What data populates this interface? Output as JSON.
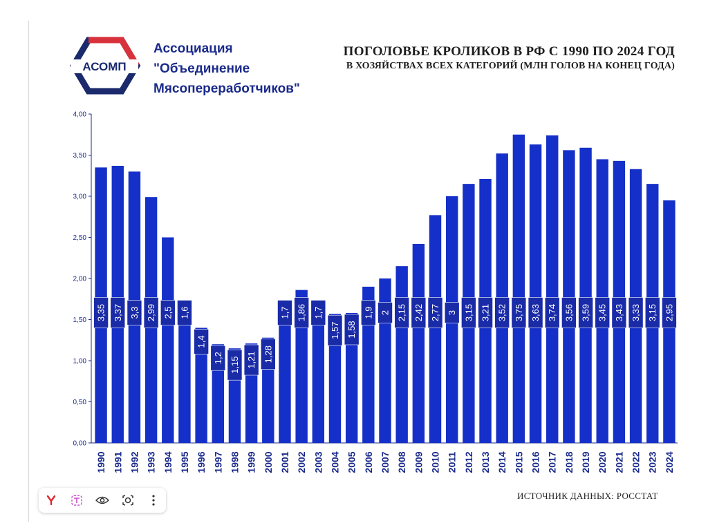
{
  "org": {
    "logo_text": "АСОМП",
    "name_line1": "Ассоциация",
    "name_line2": "\"Объединение",
    "name_line3": "Мясопереработчиков\""
  },
  "header": {
    "title": "ПОГОЛОВЬЕ КРОЛИКОВ В РФ С 1990 ПО 2024 ГОД",
    "subtitle": "В ХОЗЯЙСТВАХ ВСЕХ КАТЕГОРИЙ (МЛН ГОЛОВ НА КОНЕЦ ГОДА)"
  },
  "source": "ИСТОЧНИК ДАННЫХ: РОССТАТ",
  "colors": {
    "bar": "#1530c8",
    "label_box": "#1a2ba8",
    "axis_text": "#1a2a8a",
    "logo_red": "#d8323c",
    "logo_navy": "#1a2a6c"
  },
  "toolbar": {
    "icons": [
      "yandex-icon",
      "translate-icon",
      "eye-icon",
      "lens-icon",
      "more-icon"
    ]
  },
  "chart_data": {
    "type": "bar",
    "title": "ПОГОЛОВЬЕ КРОЛИКОВ В РФ С 1990 ПО 2024 ГОД",
    "subtitle": "В ХОЗЯЙСТВАХ ВСЕХ КАТЕГОРИЙ (МЛН ГОЛОВ НА КОНЕЦ ГОДА)",
    "xlabel": "",
    "ylabel": "",
    "ylim": [
      0,
      4
    ],
    "yticks": [
      "0,00",
      "0,50",
      "1,00",
      "1,50",
      "2,00",
      "2,50",
      "3,00",
      "3,50",
      "4,00"
    ],
    "grid": false,
    "categories": [
      "1990",
      "1991",
      "1992",
      "1993",
      "1994",
      "1995",
      "1996",
      "1997",
      "1998",
      "1999",
      "2000",
      "2001",
      "2002",
      "2003",
      "2004",
      "2005",
      "2006",
      "2007",
      "2008",
      "2009",
      "2010",
      "2011",
      "2012",
      "2013",
      "2014",
      "2015",
      "2016",
      "2017",
      "2018",
      "2019",
      "2020",
      "2021",
      "2022",
      "2023",
      "2024"
    ],
    "values": [
      3.35,
      3.37,
      3.3,
      2.99,
      2.5,
      1.6,
      1.4,
      1.2,
      1.15,
      1.21,
      1.28,
      1.7,
      1.86,
      1.7,
      1.57,
      1.58,
      1.9,
      2,
      2.15,
      2.42,
      2.77,
      3,
      3.15,
      3.21,
      3.52,
      3.75,
      3.63,
      3.74,
      3.56,
      3.59,
      3.45,
      3.43,
      3.33,
      3.15,
      2.95
    ],
    "value_labels": [
      "3,35",
      "3,37",
      "3,3",
      "2,99",
      "2,5",
      "1,6",
      "1,4",
      "1,2",
      "1,15",
      "1,21",
      "1,28",
      "1,7",
      "1,86",
      "1,7",
      "1,57",
      "1,58",
      "1,9",
      "2",
      "2,15",
      "2,42",
      "2,77",
      "3",
      "3,15",
      "3,21",
      "3,52",
      "3,75",
      "3,63",
      "3,74",
      "3,56",
      "3,59",
      "3,45",
      "3,43",
      "3,33",
      "3,15",
      "2,95"
    ]
  }
}
